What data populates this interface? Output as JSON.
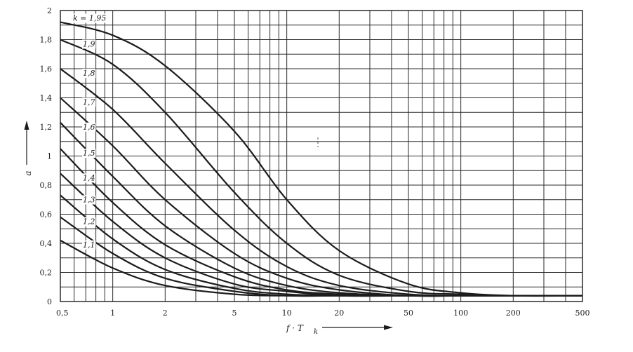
{
  "chart_data": {
    "type": "line",
    "xscale": "log",
    "xlim": [
      0.5,
      500
    ],
    "ylim": [
      0,
      2
    ],
    "grid": true,
    "xlabel": "f · T",
    "xlabel_sub": "k",
    "ylabel": "a",
    "x_ticks": [
      0.5,
      1,
      2,
      5,
      10,
      20,
      50,
      100,
      200,
      500
    ],
    "x_tick_labels": [
      "0,5",
      "1",
      "2",
      "5",
      "10",
      "20",
      "50",
      "100",
      "200",
      "500"
    ],
    "y_ticks": [
      0,
      0.2,
      0.4,
      0.6,
      0.8,
      1,
      1.2,
      1.4,
      1.6,
      1.8,
      2
    ],
    "y_tick_labels": [
      "0",
      "0,2",
      "0,4",
      "0,6",
      "0,8",
      "1",
      "1,2",
      "1,4",
      "1,6",
      "1,8",
      "2"
    ],
    "x": [
      0.5,
      1,
      2,
      5,
      10,
      20,
      50,
      100,
      200,
      500
    ],
    "series": [
      {
        "name": "k = 1,95",
        "values": [
          1.92,
          1.83,
          1.62,
          1.17,
          0.7,
          0.35,
          0.12,
          0.06,
          0.04,
          0.04
        ]
      },
      {
        "name": "1,9",
        "values": [
          1.8,
          1.63,
          1.3,
          0.75,
          0.4,
          0.18,
          0.07,
          0.05,
          0.04,
          0.04
        ]
      },
      {
        "name": "1,8",
        "values": [
          1.6,
          1.32,
          0.95,
          0.49,
          0.24,
          0.11,
          0.05,
          0.04,
          0.04,
          0.04
        ]
      },
      {
        "name": "1,7",
        "values": [
          1.4,
          1.07,
          0.7,
          0.33,
          0.16,
          0.08,
          0.04,
          0.04,
          0.04,
          0.04
        ]
      },
      {
        "name": "1,6",
        "values": [
          1.23,
          0.86,
          0.52,
          0.23,
          0.11,
          0.06,
          0.04,
          0.04,
          0.04,
          0.04
        ]
      },
      {
        "name": "1,5",
        "values": [
          1.05,
          0.68,
          0.39,
          0.17,
          0.08,
          0.05,
          0.04,
          0.04,
          0.04,
          0.04
        ]
      },
      {
        "name": "1,4",
        "values": [
          0.88,
          0.55,
          0.3,
          0.12,
          0.07,
          0.04,
          0.04,
          0.04,
          0.04,
          0.04
        ]
      },
      {
        "name": "1,3",
        "values": [
          0.73,
          0.43,
          0.22,
          0.09,
          0.05,
          0.04,
          0.04,
          0.04,
          0.04,
          0.04
        ]
      },
      {
        "name": "1,2",
        "values": [
          0.58,
          0.33,
          0.16,
          0.07,
          0.04,
          0.04,
          0.04,
          0.04,
          0.04,
          0.04
        ]
      },
      {
        "name": "1,1",
        "values": [
          0.42,
          0.23,
          0.11,
          0.05,
          0.04,
          0.04,
          0.04,
          0.04,
          0.04,
          0.04
        ]
      }
    ]
  },
  "colors": {
    "ink": "#1c1c1c",
    "grid": "#2a2a2a",
    "paper": "#ffffff"
  }
}
